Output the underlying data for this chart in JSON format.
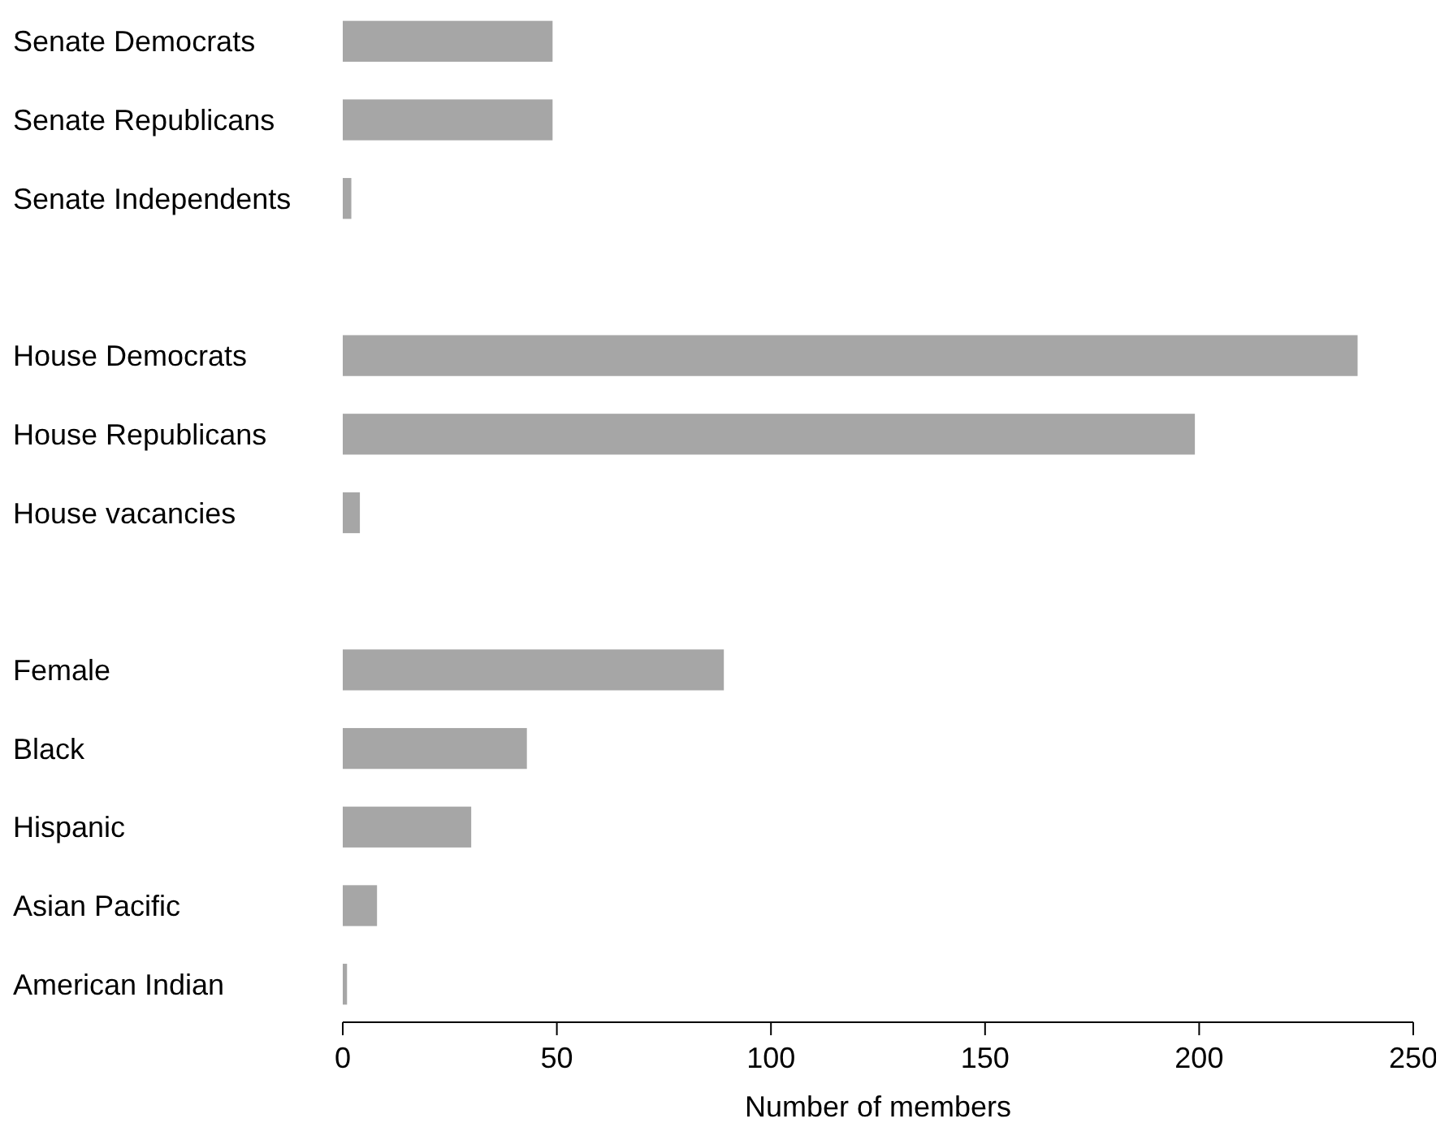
{
  "chart_data": {
    "type": "bar",
    "orientation": "horizontal",
    "xlabel": "Number of members",
    "categories": [
      "Senate Democrats",
      "Senate Republicans",
      "Senate Independents",
      null,
      "House Democrats",
      "House Republicans",
      "House vacancies",
      null,
      "Female",
      "Black",
      "Hispanic",
      "Asian Pacific",
      "American Indian"
    ],
    "values": [
      49,
      49,
      2,
      null,
      237,
      199,
      4,
      null,
      89,
      43,
      30,
      8,
      1
    ],
    "color": "#a6a6a6",
    "xlim": [
      0,
      250
    ],
    "xticks": [
      0,
      50,
      100,
      150,
      200,
      250
    ]
  }
}
